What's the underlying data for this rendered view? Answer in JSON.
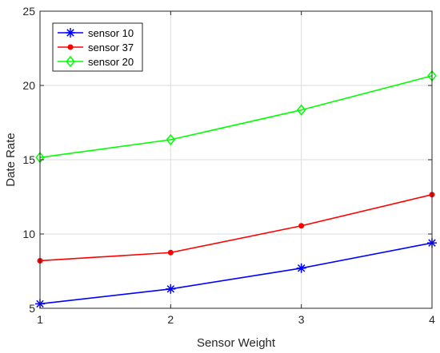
{
  "chart_data": {
    "type": "line",
    "title": "",
    "xlabel": "Sensor Weight",
    "ylabel": "Date Rate",
    "x": [
      1,
      2,
      3,
      4
    ],
    "xlim": [
      1,
      4
    ],
    "ylim": [
      5,
      25
    ],
    "xticks": [
      "1",
      "2",
      "3",
      "4"
    ],
    "yticks": [
      "5",
      "10",
      "15",
      "20",
      "25"
    ],
    "grid": true,
    "legend_position": "top-left",
    "series": [
      {
        "name": "sensor 10",
        "values": [
          5.3,
          6.3,
          7.7,
          9.4
        ],
        "color": "#0000ff",
        "marker": "asterisk"
      },
      {
        "name": "sensor 37",
        "values": [
          8.2,
          8.75,
          10.55,
          12.65
        ],
        "color": "#ff0000",
        "marker": "dot"
      },
      {
        "name": "sensor 20",
        "values": [
          15.15,
          16.35,
          18.35,
          20.65
        ],
        "color": "#00ff00",
        "marker": "diamond"
      }
    ]
  }
}
